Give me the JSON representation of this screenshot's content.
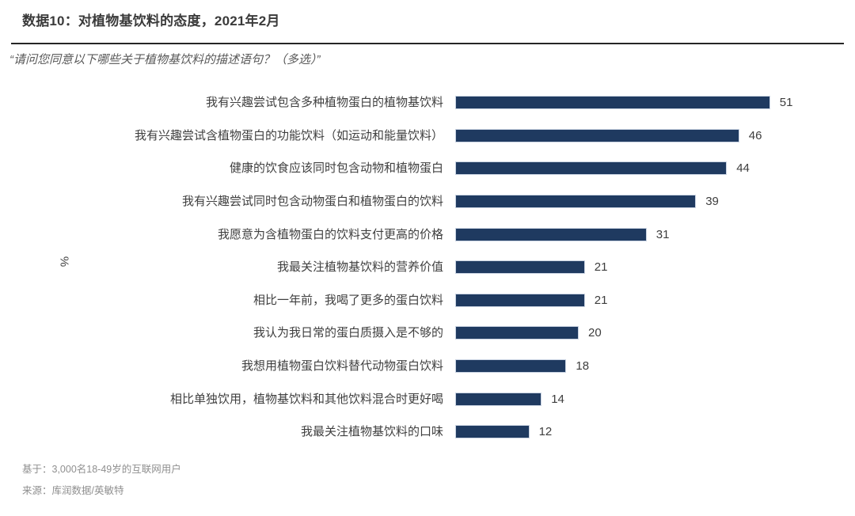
{
  "header": {
    "title": "数据10：对植物基饮料的态度，2021年2月",
    "subtitle": "“请问您同意以下哪些关于植物基饮料的描述语句？（多选）”"
  },
  "chart_data": {
    "type": "bar",
    "orientation": "horizontal",
    "title": "对植物基饮料的态度，2021年2月",
    "axis_label": "%",
    "unit": "%",
    "categories": [
      "我有兴趣尝试包含多种植物蛋白的植物基饮料",
      "我有兴趣尝试含植物蛋白的功能饮料（如运动和能量饮料）",
      "健康的饮食应该同时包含动物和植物蛋白",
      "我有兴趣尝试同时包含动物蛋白和植物蛋白的饮料",
      "我愿意为含植物蛋白的饮料支付更高的价格",
      "我最关注植物基饮料的营养价值",
      "相比一年前，我喝了更多的蛋白饮料",
      "我认为我日常的蛋白质摄入是不够的",
      "我想用植物蛋白饮料替代动物蛋白饮料",
      "相比单独饮用，植物基饮料和其他饮料混合时更好喝",
      "我最关注植物基饮料的口味"
    ],
    "values": [
      51,
      46,
      44,
      39,
      31,
      21,
      21,
      20,
      18,
      14,
      12
    ],
    "xlim": [
      0,
      55
    ],
    "data_labels": true,
    "grid": false,
    "legend": "none",
    "bar_color": "#1f3a60"
  },
  "footer": {
    "base": "基于：3,000名18-49岁的互联网用户",
    "source": "来源：库润数据/英敏特"
  }
}
